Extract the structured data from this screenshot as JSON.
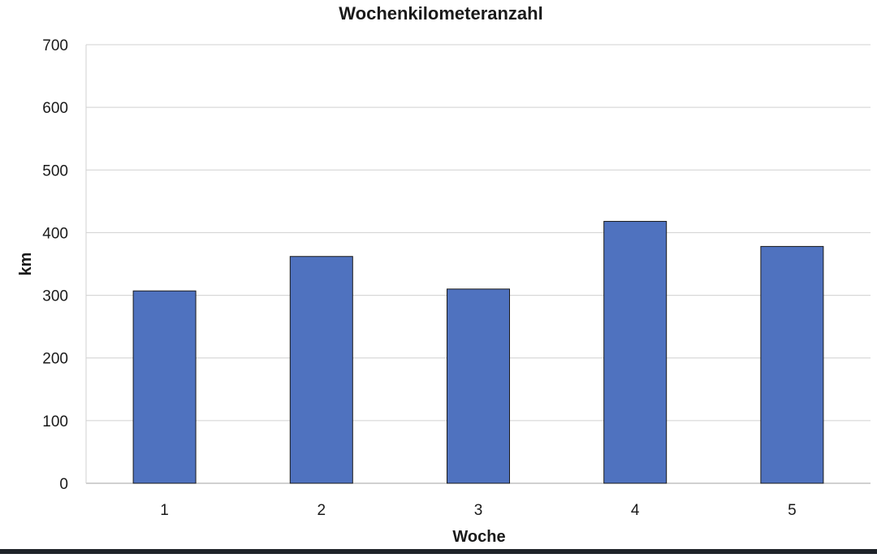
{
  "chart_data": {
    "type": "bar",
    "title": "Wochenkilometeranzahl",
    "xlabel": "Woche",
    "ylabel": "km",
    "categories": [
      "1",
      "2",
      "3",
      "4",
      "5"
    ],
    "values": [
      307,
      362,
      310,
      418,
      378
    ],
    "ylim": [
      0,
      700
    ],
    "yticks": [
      "0",
      "100",
      "200",
      "300",
      "400",
      "500",
      "600",
      "700"
    ],
    "grid": true,
    "bar_color": "#4f72bf",
    "bar_edge_color": "#1a1a1a",
    "grid_color": "#d0d0d0"
  }
}
